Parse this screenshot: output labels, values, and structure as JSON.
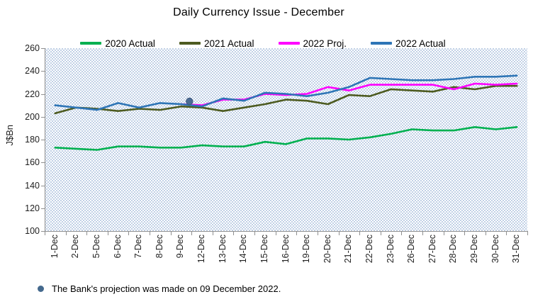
{
  "title": "Daily Currency Issue -  December",
  "y_axis": {
    "label": "J$Bn"
  },
  "footnote": {
    "bullet_color": "#44698D",
    "text": "The Bank's projection was made on 09 December 2022."
  },
  "chart_data": {
    "type": "line",
    "title": "Daily Currency Issue -  December",
    "xlabel": "",
    "ylabel": "J$Bn",
    "ylim": [
      100,
      260
    ],
    "ytick_step": 20,
    "y_ticks": [
      260,
      240,
      220,
      200,
      180,
      160,
      140,
      120,
      100
    ],
    "grid": false,
    "legend_position": "top",
    "plot_background": "dotted-pattern",
    "categories": [
      "1-Dec",
      "2-Dec",
      "5-Dec",
      "6-Dec",
      "7-Dec",
      "8-Dec",
      "9-Dec",
      "12-Dec",
      "13-Dec",
      "14-Dec",
      "15-Dec",
      "16-Dec",
      "19-Dec",
      "20-Dec",
      "21-Dec",
      "22-Dec",
      "23-Dec",
      "26-Dec",
      "27-Dec",
      "28-Dec",
      "29-Dec",
      "30-Dec",
      "31-Dec"
    ],
    "series": [
      {
        "name": "2020 Actual",
        "color": "#00B050",
        "values": [
          173,
          172,
          171,
          174,
          174,
          173,
          173,
          175,
          174,
          174,
          178,
          176,
          181,
          181,
          180,
          182,
          185,
          189,
          188,
          188,
          191,
          189,
          191
        ]
      },
      {
        "name": "2021 Actual",
        "color": "#4D5B21",
        "values": [
          203,
          208,
          207,
          205,
          207,
          206,
          209,
          208,
          205,
          208,
          211,
          215,
          214,
          211,
          219,
          218,
          224,
          223,
          222,
          226,
          224,
          227,
          227
        ]
      },
      {
        "name": "2022 Proj.",
        "color": "#FF00FF",
        "values": [
          null,
          null,
          null,
          null,
          null,
          null,
          211,
          210,
          215,
          215,
          220,
          219,
          220,
          226,
          223,
          228,
          228,
          228,
          228,
          224,
          229,
          228,
          229
        ]
      },
      {
        "name": "2022 Actual",
        "color": "#2E75B6",
        "values": [
          210,
          208,
          206,
          212,
          208,
          212,
          211,
          209,
          216,
          214,
          221,
          220,
          218,
          221,
          226,
          234,
          233,
          232,
          232,
          233,
          235,
          235,
          236
        ]
      }
    ],
    "annotation_marker": {
      "color": "#4C6C94",
      "x_index": 6.4,
      "value": 213.5
    }
  }
}
